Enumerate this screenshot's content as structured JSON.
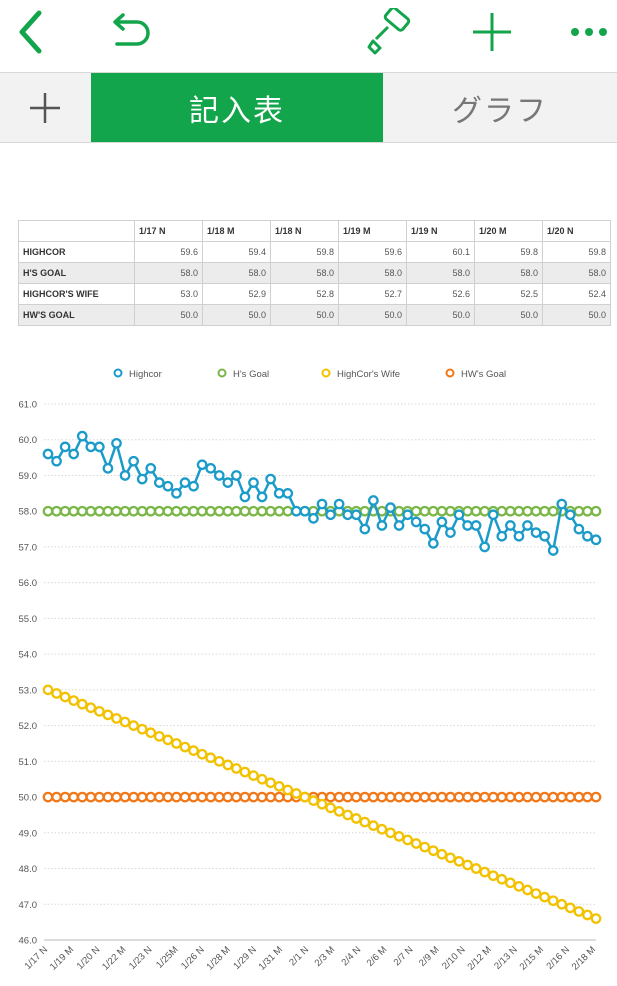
{
  "toolbar": {
    "icons": [
      "back-chevron-icon",
      "undo-icon",
      "paintbrush-icon",
      "plus-icon",
      "more-dots-icon"
    ],
    "accent": "#12a54b"
  },
  "tabs": {
    "add_label": "+",
    "active_label": "記入表",
    "inactive_label": "グラフ"
  },
  "table": {
    "columns": [
      "1/17 N",
      "1/18 M",
      "1/18 N",
      "1/19 M",
      "1/19 N",
      "1/20 M",
      "1/20 N"
    ],
    "rows": [
      {
        "name": "HIGHCOR",
        "values": [
          "59.6",
          "59.4",
          "59.8",
          "59.6",
          "60.1",
          "59.8",
          "59.8"
        ]
      },
      {
        "name": "H'S GOAL",
        "values": [
          "58.0",
          "58.0",
          "58.0",
          "58.0",
          "58.0",
          "58.0",
          "58.0"
        ]
      },
      {
        "name": "HIGHCOR'S WIFE",
        "values": [
          "53.0",
          "52.9",
          "52.8",
          "52.7",
          "52.6",
          "52.5",
          "52.4"
        ]
      },
      {
        "name": "HW'S GOAL",
        "values": [
          "50.0",
          "50.0",
          "50.0",
          "50.0",
          "50.0",
          "50.0",
          "50.0"
        ]
      }
    ]
  },
  "chart_data": {
    "type": "line",
    "ylim": [
      46.0,
      61.0
    ],
    "yticks": [
      "61.0",
      "60.0",
      "59.0",
      "58.0",
      "57.0",
      "56.0",
      "55.0",
      "54.0",
      "53.0",
      "52.0",
      "51.0",
      "50.0",
      "49.0",
      "48.0",
      "47.0",
      "46.0"
    ],
    "xticks": [
      "1/17 N",
      "1/19 M",
      "1/20 N",
      "1/22 M",
      "1/23 N",
      "1/25M",
      "1/26 N",
      "1/28 M",
      "1/29 N",
      "1/31 M",
      "2/1 N",
      "2/3 M",
      "2/4 N",
      "2/6 M",
      "2/7 N",
      "2/9 M",
      "2/10 N",
      "2/12 M",
      "2/13 N",
      "2/15 M",
      "2/16 N",
      "2/18 M"
    ],
    "grid": true,
    "legend_position": "top",
    "series": [
      {
        "name": "Highcor",
        "color": "#1a9bc9",
        "values": [
          59.6,
          59.4,
          59.8,
          59.6,
          60.1,
          59.8,
          59.8,
          59.2,
          59.9,
          59.0,
          59.4,
          58.9,
          59.2,
          58.8,
          58.7,
          58.5,
          58.8,
          58.7,
          59.3,
          59.2,
          59.0,
          58.8,
          59.0,
          58.4,
          58.8,
          58.4,
          58.9,
          58.5,
          58.5,
          58.0,
          58.0,
          57.8,
          58.2,
          57.9,
          58.2,
          57.9,
          57.9,
          57.5,
          58.3,
          57.6,
          58.1,
          57.6,
          57.9,
          57.7,
          57.5,
          57.1,
          57.7,
          57.4,
          57.9,
          57.6,
          57.6,
          57.0,
          57.9,
          57.3,
          57.6,
          57.3,
          57.6,
          57.4,
          57.3,
          56.9,
          58.2,
          57.9,
          57.5,
          57.3,
          57.2
        ]
      },
      {
        "name": "H's Goal",
        "color": "#7ab648",
        "constant": 58.0
      },
      {
        "name": "HighCor's Wife",
        "color": "#f2c200",
        "start": 53.0,
        "end": 46.6
      },
      {
        "name": "HW's Goal",
        "color": "#f07818",
        "constant": 50.0
      }
    ]
  }
}
